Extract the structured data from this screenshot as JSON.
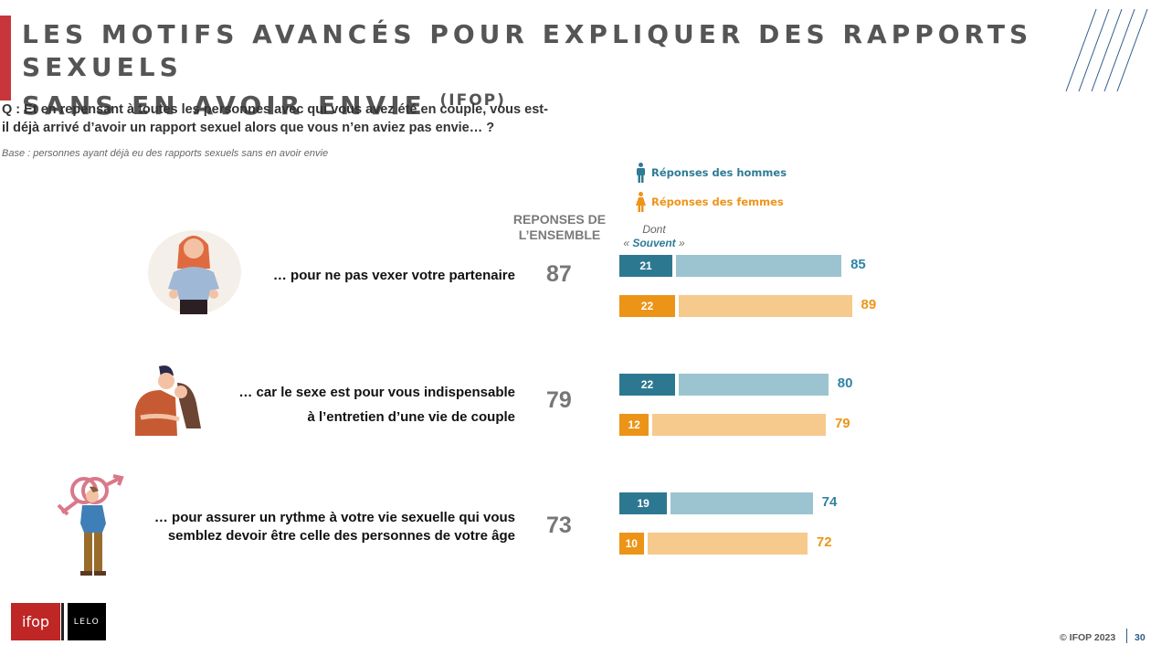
{
  "header": {
    "title_line1": "LES MOTIFS AVANCÉS POUR EXPLIQUER DES RAPPORTS SEXUELS",
    "title_line2": "SANS EN AVOIR ENVIE",
    "title_source": "(IFOP)",
    "question": "Q : Et en repensant à toutes les personnes avec qui vous avez été en couple, vous est-il déjà arrivé d’avoir un rapport sexuel alors que vous n’en aviez pas envie… ?",
    "base": "Base : personnes ayant déjà eu des rapports sexuels sans en avoir envie"
  },
  "legend": {
    "men": "Réponses des hommes",
    "women": "Réponses des femmes"
  },
  "colors": {
    "men_dark": "#2d7891",
    "men_light": "#9bc4d0",
    "women_dark": "#ec9418",
    "women_light": "#f6c98c",
    "accent_red": "#c8363b"
  },
  "columns": {
    "ensemble_line1": "REPONSES DE",
    "ensemble_line2": "L’ENSEMBLE",
    "dont": "Dont",
    "souvent_open": "« ",
    "souvent": "Souvent",
    "souvent_close": " »"
  },
  "chart_data": {
    "type": "bar",
    "title": "LES MOTIFS AVANCÉS POUR EXPLIQUER DES RAPPORTS SEXUELS SANS EN AVOIR ENVIE (IFOP)",
    "xlabel": "",
    "ylabel": "",
    "xlim": [
      0,
      100
    ],
    "legend_position": "top-right",
    "categories": [
      "… pour ne pas vexer votre partenaire",
      "… car le sexe est pour vous indispensable à l’entretien d’une vie de couple",
      "… pour assurer un rythme à votre vie sexuelle qui vous semblez devoir être celle des personnes de votre âge"
    ],
    "category_lines": [
      [
        "… pour ne pas vexer votre partenaire"
      ],
      [
        "… car le sexe est pour vous indispensable",
        "à l’entretien d’une vie de couple"
      ],
      [
        "… pour assurer un rythme à votre vie sexuelle qui vous",
        "semblez devoir être celle des personnes de votre âge"
      ]
    ],
    "overall": [
      87,
      79,
      73
    ],
    "series": [
      {
        "name": "Réponses des hommes",
        "values": [
          85,
          80,
          74
        ],
        "souvent": [
          21,
          22,
          19
        ]
      },
      {
        "name": "Réponses des femmes",
        "values": [
          89,
          79,
          72
        ],
        "souvent": [
          22,
          12,
          10
        ]
      }
    ]
  },
  "footer": {
    "logo_ifop": "ifop",
    "logo_lelo": "LELO",
    "copyright": "© IFOP 2023",
    "page_number": "30"
  }
}
